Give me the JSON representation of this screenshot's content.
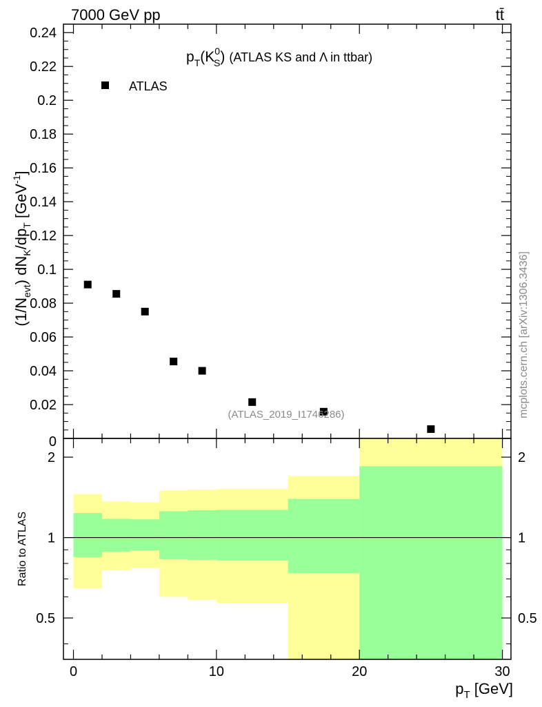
{
  "header": {
    "energy_label": "7000 GeV pp",
    "process_label": "tt̄"
  },
  "side_label": "mcplots.cern.ch [arXiv:1306.3436]",
  "analysis_label": "(ATLAS_2019_I1746286)",
  "chart_data": [
    {
      "type": "scatter",
      "title": "p_T(K_S^0) (ATLAS KS and Λ in ttbar)",
      "title_parts": {
        "p": "p",
        "T": "T",
        "open": "(K",
        "zero": "0",
        "S": "S",
        "close": ")",
        "rest": "(ATLAS KS and Λ in ttbar)"
      },
      "ylabel_parts": {
        "open": "(1/N",
        "evt": "evt",
        "mid": ") dN",
        "K": "K",
        "slash": "/dp",
        "T": "T",
        "unit": " [GeV",
        "exp": "-1",
        "end": "]"
      },
      "xlim": [
        -0.7,
        30.6
      ],
      "ylim": [
        0,
        0.245
      ],
      "y_ticks": [
        0.02,
        0.04,
        0.06,
        0.08,
        0.1,
        0.12,
        0.14,
        0.16,
        0.18,
        0.2,
        0.22,
        0.24
      ],
      "y_tick_labels": [
        "0.02",
        "0.04",
        "0.06",
        "0.08",
        "0.1",
        "0.12",
        "0.14",
        "0.16",
        "0.18",
        "0.2",
        "0.22",
        "0.24"
      ],
      "y_zero_label": "0",
      "legend": {
        "entry": "ATLAS",
        "position": "top-left"
      },
      "series": [
        {
          "name": "ATLAS",
          "x": [
            1,
            3,
            5,
            7,
            9,
            12.5,
            17.5,
            25
          ],
          "y": [
            0.091,
            0.0855,
            0.075,
            0.0455,
            0.04,
            0.0215,
            0.0158,
            0.0055
          ]
        }
      ]
    },
    {
      "type": "area",
      "ylabel": "Ratio to ATLAS",
      "xlabel_parts": {
        "p": "p",
        "T": "T",
        "unit": " [GeV]"
      },
      "xlim": [
        -0.7,
        30.6
      ],
      "ylim": [
        0.35,
        2.35
      ],
      "x_ticks": [
        0,
        10,
        20,
        30
      ],
      "x_tick_labels": [
        "0",
        "10",
        "20",
        "30"
      ],
      "y_ticks": [
        0.5,
        1,
        2
      ],
      "y_tick_labels": [
        "0.5",
        "1",
        "2"
      ],
      "reference_line": 1,
      "bins": [
        {
          "x0": 0,
          "x1": 2,
          "yellow": [
            0.645,
            1.455
          ],
          "green": [
            0.845,
            1.235
          ]
        },
        {
          "x0": 2,
          "x1": 4,
          "yellow": [
            0.755,
            1.365
          ],
          "green": [
            0.885,
            1.175
          ]
        },
        {
          "x0": 4,
          "x1": 6,
          "yellow": [
            0.77,
            1.355
          ],
          "green": [
            0.895,
            1.17
          ]
        },
        {
          "x0": 6,
          "x1": 8,
          "yellow": [
            0.6,
            1.5
          ],
          "green": [
            0.83,
            1.255
          ]
        },
        {
          "x0": 8,
          "x1": 10,
          "yellow": [
            0.585,
            1.51
          ],
          "green": [
            0.825,
            1.265
          ]
        },
        {
          "x0": 10,
          "x1": 15,
          "yellow": [
            0.57,
            1.52
          ],
          "green": [
            0.82,
            1.27
          ]
        },
        {
          "x0": 15,
          "x1": 20,
          "yellow": [
            0.35,
            1.7
          ],
          "green": [
            0.735,
            1.395
          ]
        },
        {
          "x0": 20,
          "x1": 30,
          "yellow": [
            0.35,
            2.35
          ],
          "green": [
            0.35,
            1.85
          ]
        }
      ]
    }
  ]
}
